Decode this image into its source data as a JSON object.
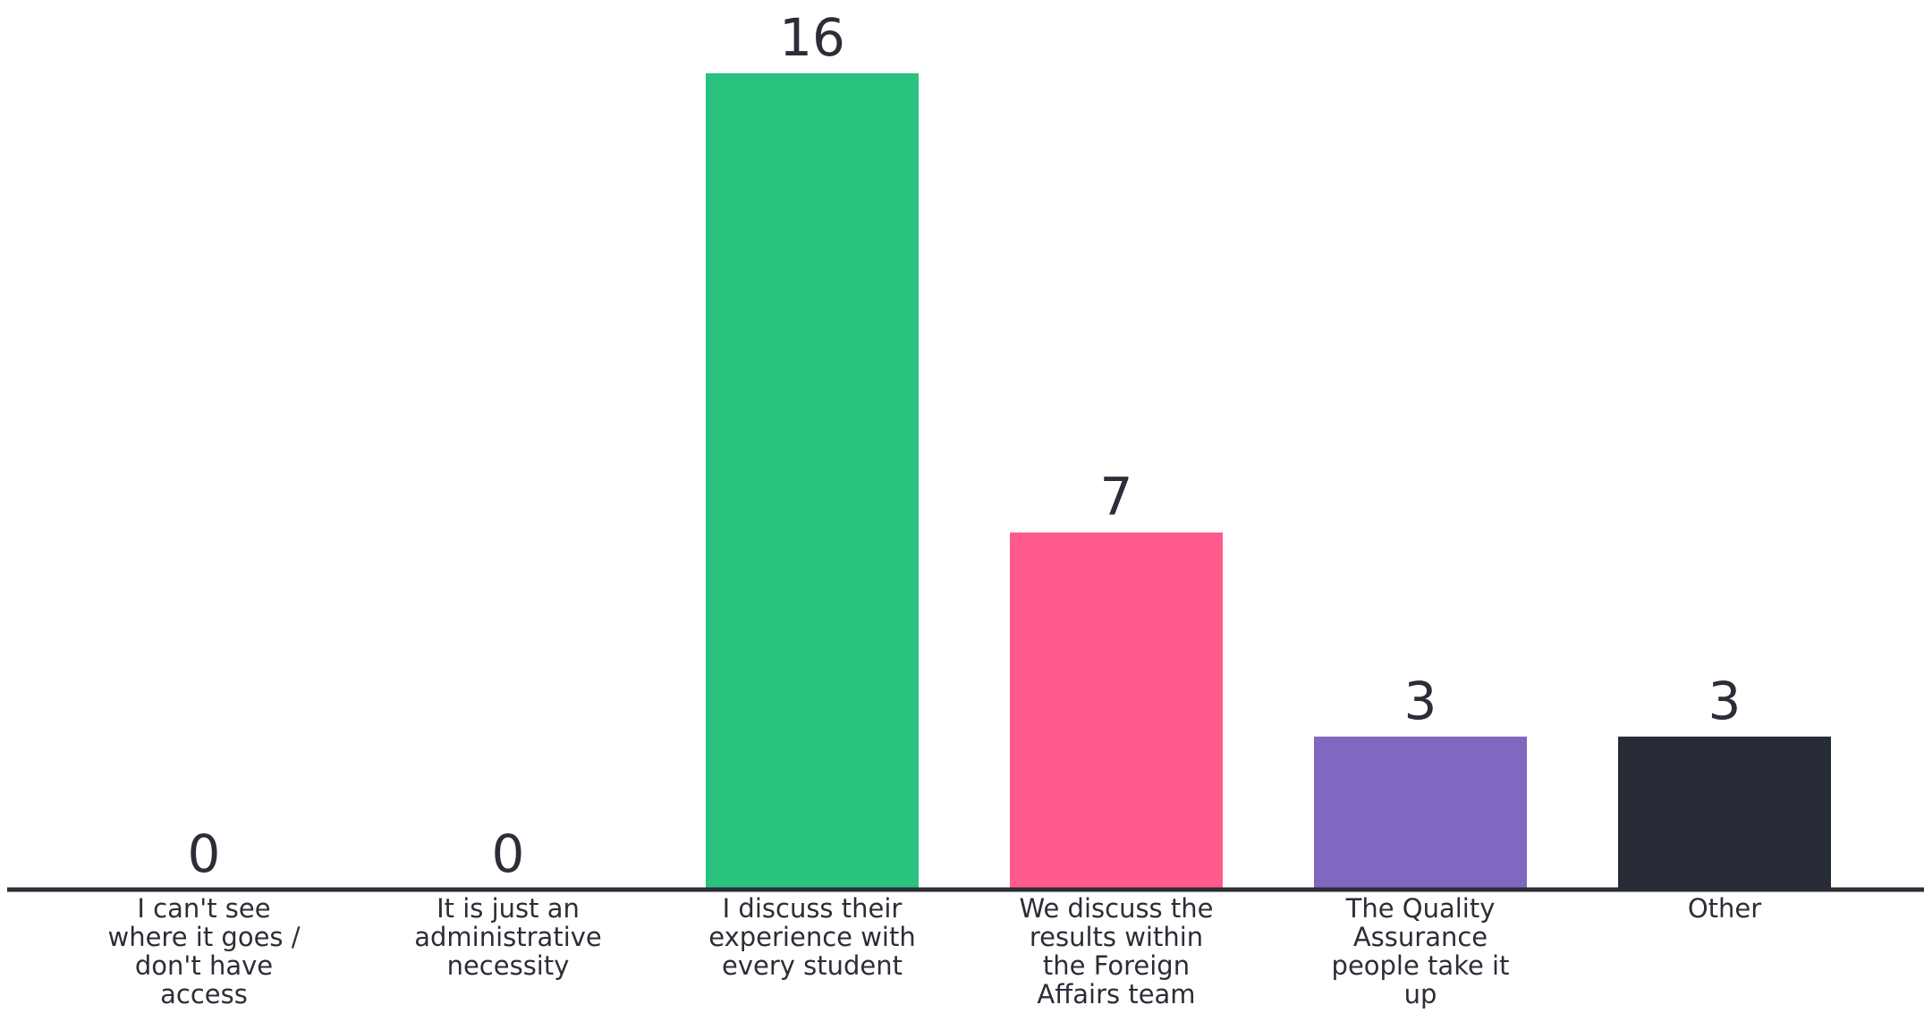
{
  "chart_data": {
    "type": "bar",
    "categories": [
      [
        "I can't see",
        "where it goes /",
        "don't have",
        "access"
      ],
      [
        "It is just an",
        "administrative",
        "necessity"
      ],
      [
        "I discuss their",
        "experience with",
        "every student"
      ],
      [
        "We discuss the",
        "results within",
        "the Foreign",
        "Affairs team"
      ],
      [
        "The Quality",
        "Assurance",
        "people take it",
        "up"
      ],
      [
        "Other"
      ]
    ],
    "values": [
      0,
      0,
      16,
      7,
      3,
      3
    ],
    "colors": [
      "#29c27f",
      "#29c27f",
      "#29c27f",
      "#ff5a8c",
      "#7f68bf",
      "#262b36"
    ],
    "axis_color": "#2b2e36",
    "ylim": [
      0,
      16
    ],
    "grid": false,
    "legend": "none",
    "title": "",
    "xlabel": "",
    "ylabel": ""
  }
}
